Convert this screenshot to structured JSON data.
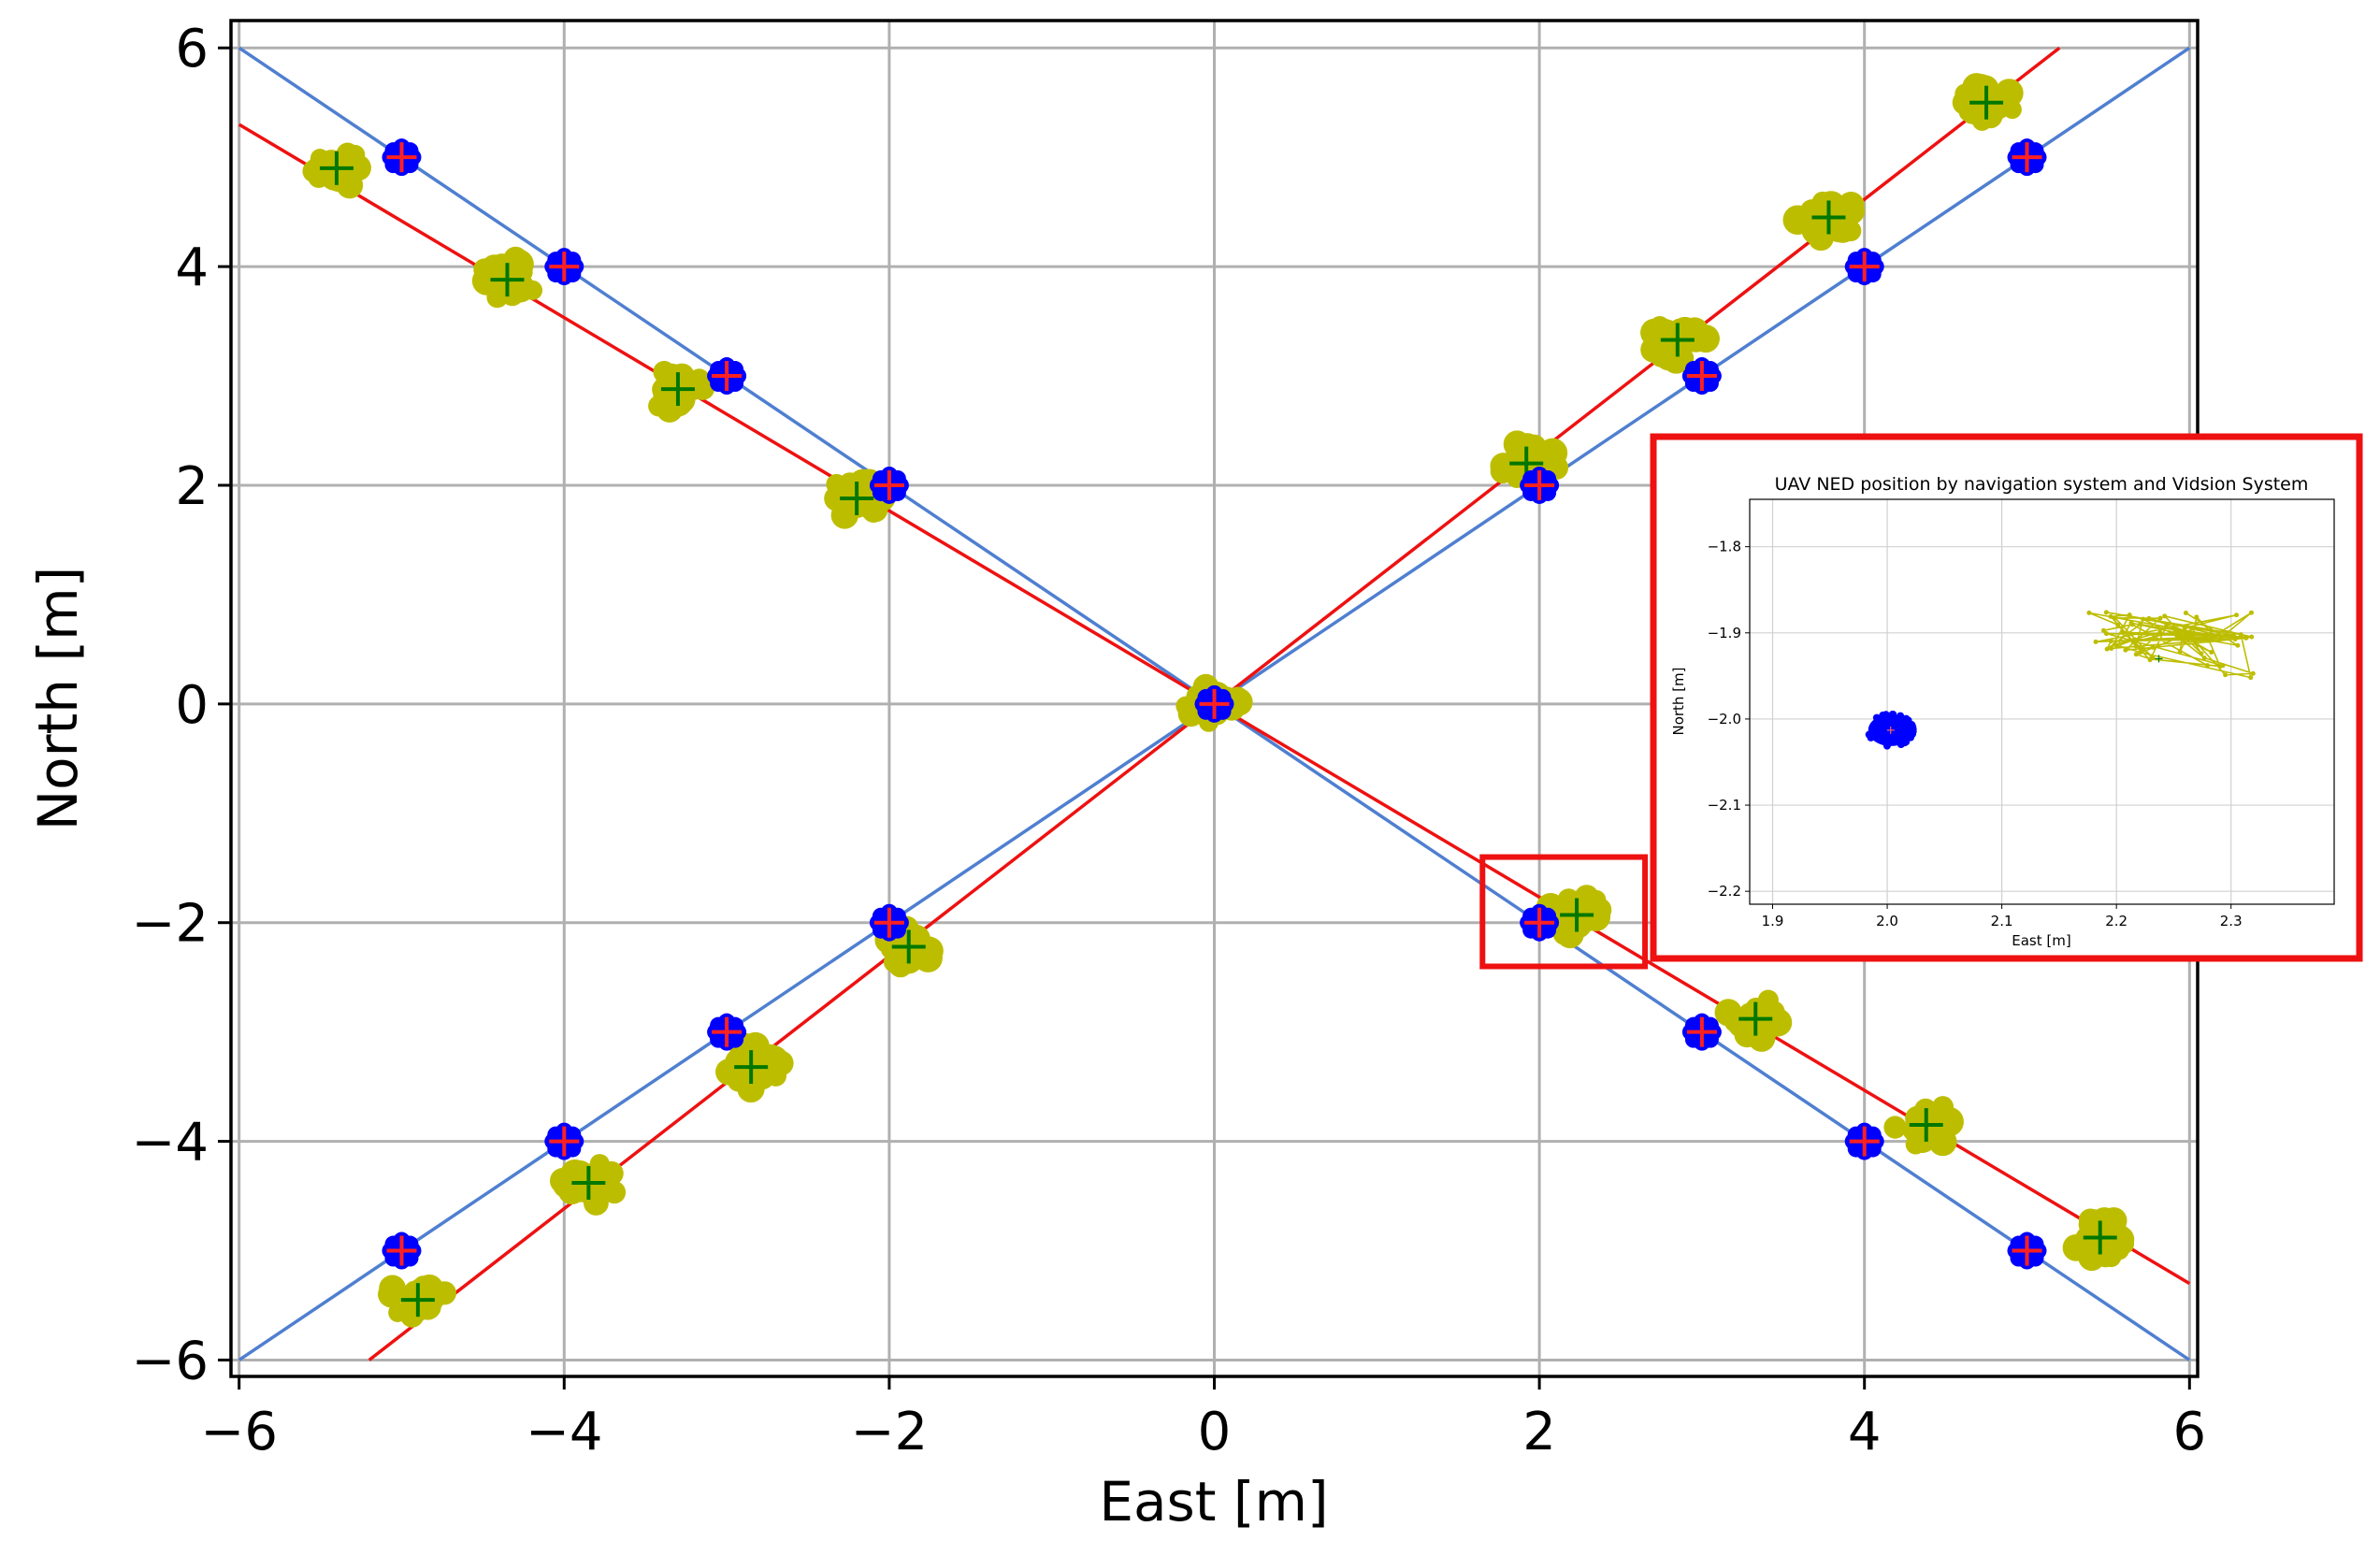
{
  "chart_data": [
    {
      "type": "scatter",
      "title": "",
      "xlabel": "East [m]",
      "ylabel": "North [m]",
      "xlim": [
        -6.05,
        6.05
      ],
      "ylim": [
        -6.15,
        6.25
      ],
      "xticks": [
        -6,
        -4,
        -2,
        0,
        2,
        4,
        6
      ],
      "yticks": [
        -6,
        -4,
        -2,
        0,
        2,
        4,
        6
      ],
      "xtick_labels": [
        "−6",
        "−4",
        "−2",
        "0",
        "2",
        "4",
        "6"
      ],
      "ytick_labels": [
        "−6",
        "−4",
        "−2",
        "0",
        "2",
        "4",
        "6"
      ],
      "grid": true,
      "legend": "none",
      "lines": [
        {
          "color": "#4f7fd0",
          "points": [
            [
              -6,
              6
            ],
            [
              6,
              -6
            ]
          ]
        },
        {
          "color": "#4f7fd0",
          "points": [
            [
              -6,
              -6
            ],
            [
              6,
              6
            ]
          ]
        },
        {
          "color": "#ee1111",
          "points": [
            [
              -6,
              5.3
            ],
            [
              6,
              -5.3
            ]
          ]
        },
        {
          "color": "#ee1111",
          "points": [
            [
              -5.2,
              -6.0
            ],
            [
              5.2,
              6.0
            ]
          ]
        }
      ],
      "navigation_points": [
        [
          -5,
          5
        ],
        [
          -4,
          4
        ],
        [
          -3,
          3
        ],
        [
          -2,
          2
        ],
        [
          0,
          0
        ],
        [
          2,
          2
        ],
        [
          3,
          3
        ],
        [
          4,
          4
        ],
        [
          5,
          5
        ],
        [
          -2,
          -2
        ],
        [
          -3,
          -3
        ],
        [
          -4,
          -4
        ],
        [
          -5,
          -5
        ],
        [
          2,
          -2
        ],
        [
          3,
          -3
        ],
        [
          4,
          -4
        ],
        [
          5,
          -5
        ]
      ],
      "vision_points": [
        [
          -5.4,
          4.9
        ],
        [
          -4.35,
          3.88
        ],
        [
          -3.3,
          2.88
        ],
        [
          -2.2,
          1.88
        ],
        [
          0,
          0
        ],
        [
          1.92,
          2.2
        ],
        [
          2.85,
          3.33
        ],
        [
          3.78,
          4.45
        ],
        [
          4.75,
          5.5
        ],
        [
          -1.88,
          -2.22
        ],
        [
          -2.85,
          -3.32
        ],
        [
          -3.85,
          -4.38
        ],
        [
          -4.9,
          -5.45
        ],
        [
          2.23,
          -1.93
        ],
        [
          3.33,
          -2.88
        ],
        [
          4.38,
          -3.85
        ],
        [
          5.45,
          -4.88
        ]
      ],
      "navigation_color": "#0000ff",
      "navigation_marker_color": "#ff2020",
      "vision_color": "#bdbd00",
      "vision_marker_color": "#007700",
      "highlight_color": "#ee1111",
      "highlight_box": {
        "xmin": 1.65,
        "xmax": 2.65,
        "ymin": -2.4,
        "ymax": -1.4
      }
    },
    {
      "type": "scatter",
      "title": "UAV NED position by navigation system and Vidsion System",
      "xlabel": "East [m]",
      "ylabel": "North [m]",
      "xlim": [
        1.88,
        2.39
      ],
      "ylim": [
        -2.215,
        -1.745
      ],
      "xticks": [
        1.9,
        2.0,
        2.1,
        2.2,
        2.3
      ],
      "yticks": [
        -2.2,
        -2.1,
        -2.0,
        -1.9,
        -1.8
      ],
      "xtick_labels": [
        "1.9",
        "2.0",
        "2.1",
        "2.2",
        "2.3"
      ],
      "ytick_labels": [
        "−2.2",
        "−2.1",
        "−2.0",
        "−1.9",
        "−1.8"
      ],
      "grid": true,
      "navigation_cluster": {
        "center": [
          2.003,
          -2.013
        ],
        "marker": [
          2.003,
          -2.013
        ]
      },
      "vision_cluster": {
        "center": [
          2.237,
          -1.93
        ],
        "marker": [
          2.237,
          -1.93
        ],
        "x_range": [
          2.15,
          2.32
        ],
        "y_range": [
          -1.975,
          -1.865
        ]
      }
    }
  ]
}
